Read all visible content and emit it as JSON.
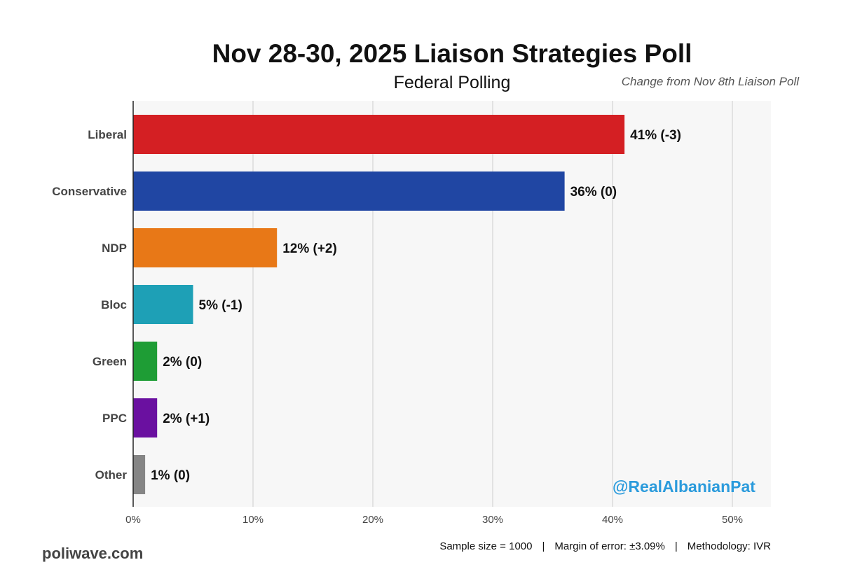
{
  "header": {
    "title": "Nov 28-30, 2025 Liaison Strategies Poll",
    "subtitle": "Federal Polling",
    "change_note": "Change from Nov 8th Liaison Poll"
  },
  "chart_data": {
    "type": "bar",
    "orientation": "horizontal",
    "title": "Nov 28-30, 2025 Liaison Strategies Poll",
    "subtitle": "Federal Polling",
    "xlabel": "",
    "ylabel": "",
    "xlim": [
      0,
      53
    ],
    "xticks": [
      0,
      10,
      20,
      30,
      40,
      50
    ],
    "xtick_labels": [
      "0%",
      "10%",
      "20%",
      "30%",
      "40%",
      "50%"
    ],
    "grid": true,
    "categories": [
      "Liberal",
      "Conservative",
      "NDP",
      "Bloc",
      "Green",
      "PPC",
      "Other"
    ],
    "values": [
      41,
      36,
      12,
      5,
      2,
      2,
      1
    ],
    "data_labels": [
      "41% (-3)",
      "36% (0)",
      "12% (+2)",
      "5% (-1)",
      "2% (0)",
      "2% (+1)",
      "1% (0)"
    ],
    "colors": [
      "#d41f23",
      "#2046a3",
      "#e87817",
      "#1ea0b6",
      "#1e9d35",
      "#6a10a0",
      "#858585"
    ]
  },
  "watermark": "@RealAlbanianPat",
  "source": "poliwave.com",
  "footer": {
    "sample": "Sample size = 1000",
    "margin": "Margin of error: ±3.09%",
    "method": "Methodology: IVR"
  }
}
